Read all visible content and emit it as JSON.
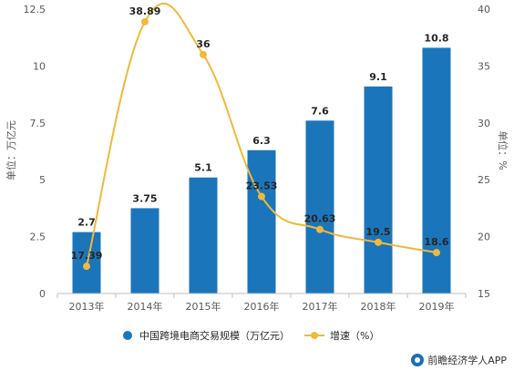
{
  "chart_data": {
    "type": "bar",
    "categories": [
      "2013年",
      "2014年",
      "2015年",
      "2016年",
      "2017年",
      "2018年",
      "2019年"
    ],
    "series": [
      {
        "name": "中国跨境电商交易规模（万亿元）",
        "type": "bar",
        "axis": "left",
        "color": "#1b75bb",
        "values": [
          2.7,
          3.75,
          5.1,
          6.3,
          7.6,
          9.1,
          10.8
        ],
        "labels": [
          "2.7",
          "3.75",
          "5.1",
          "6.3",
          "7.6",
          "9.1",
          "10.8"
        ]
      },
      {
        "name": "增速（%）",
        "type": "line",
        "axis": "right",
        "color": "#f0b93b",
        "values": [
          17.39,
          38.89,
          36,
          23.53,
          20.63,
          19.5,
          18.6
        ],
        "labels": [
          "17.39",
          "38.89",
          "36",
          "23.53",
          "20.63",
          "19.5",
          "18.6"
        ]
      }
    ],
    "ylabel": "单位：万亿元",
    "y2label": "单位：%",
    "ylim": [
      0,
      12.5
    ],
    "y2lim": [
      15,
      40
    ],
    "yticks": [
      "0",
      "2.5",
      "5",
      "7.5",
      "10",
      "12.5"
    ],
    "y2ticks": [
      "15",
      "20",
      "25",
      "30",
      "35",
      "40"
    ],
    "grid": false,
    "legend_position": "bottom"
  },
  "credit": "前瞻经济学人APP"
}
